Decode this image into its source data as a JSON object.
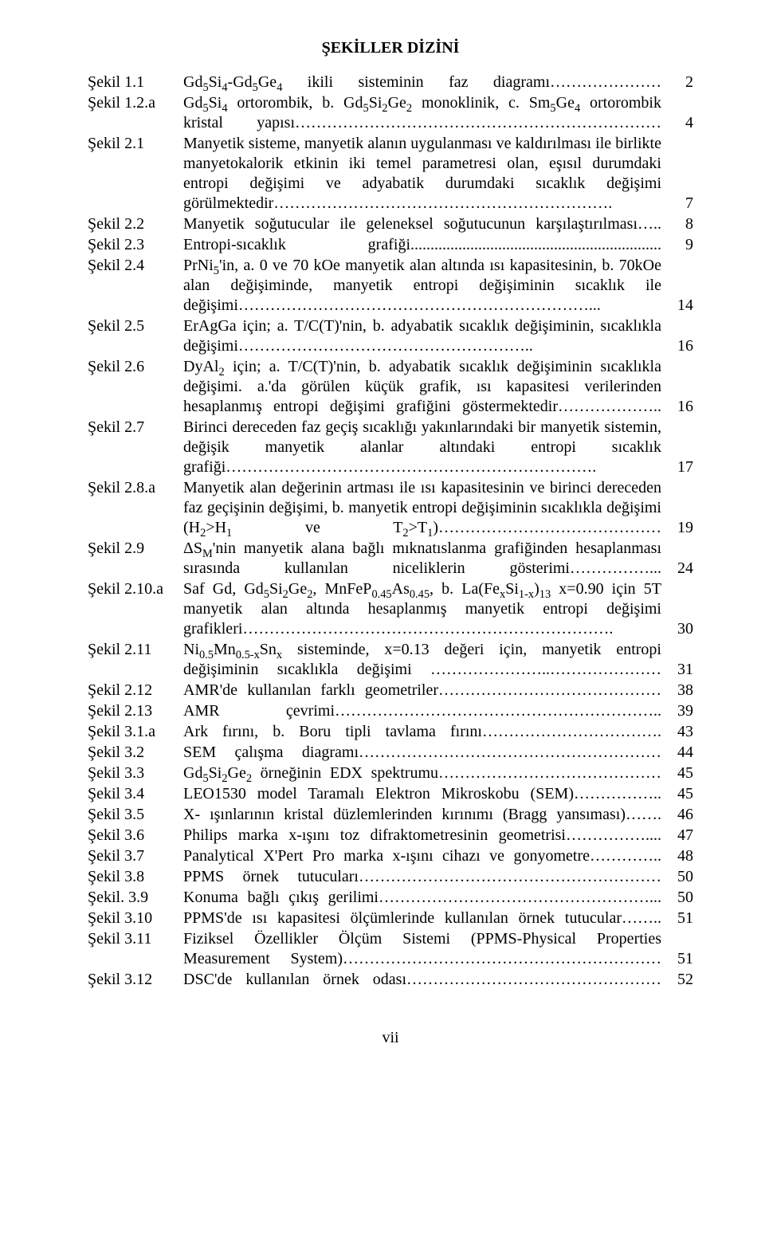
{
  "title": "ŞEKİLLER DİZİNİ",
  "footer": "vii",
  "entries": [
    {
      "label": "Şekil 1.1",
      "desc": "Gd<sub>5</sub>Si<sub>4</sub>-Gd<sub>5</sub>Ge<sub>4</sub> ikili sisteminin faz diagramı…………………",
      "page": "2"
    },
    {
      "label": "Şekil 1.2.a",
      "desc": "Gd<sub>5</sub>Si<sub>4</sub> ortorombik, b. Gd<sub>5</sub>Si<sub>2</sub>Ge<sub>2</sub> monoklinik, c. Sm<sub>5</sub>Ge<sub>4</sub> ortorombik kristal yapısı……………………………………………………………",
      "page": "4"
    },
    {
      "label": "Şekil 2.1",
      "desc": "Manyetik sisteme, manyetik alanın uygulanması ve kaldırılması ile birlikte manyetokalorik etkinin iki temel parametresi olan, eşısıl durumdaki entropi değişimi ve adyabatik durumdaki sıcaklık değişimi görülmektedir……………………………………………………….",
      "page": "7"
    },
    {
      "label": "Şekil 2.2",
      "desc": "Manyetik soğutucular ile geleneksel soğutucunun karşılaştırılması…..",
      "page": "8"
    },
    {
      "label": "Şekil 2.3",
      "desc": "Entropi-sıcaklık grafiği...............................................................",
      "page": "9"
    },
    {
      "label": "Şekil 2.4",
      "desc": "PrNi<sub>5</sub>'in, a. 0 ve 70 kOe manyetik alan altında ısı kapasitesinin, b. 70kOe alan değişiminde, manyetik entropi değişiminin sıcaklık ile değişimi…………………………………………………………...",
      "page": "14"
    },
    {
      "label": "Şekil 2.5",
      "desc": "ErAgGa için; a. T/C(T)'nin, b. adyabatik sıcaklık değişiminin, sıcaklıkla değişimi………………………………………………..",
      "page": "16"
    },
    {
      "label": "Şekil 2.6",
      "desc": "DyAl<sub>2</sub> için; a. T/C(T)'nin, b. adyabatik sıcaklık değişiminin sıcaklıkla değişimi. a.'da görülen küçük grafik, ısı kapasitesi verilerinden hesaplanmış entropi değişimi grafiğini göstermektedir………………..",
      "page": "16"
    },
    {
      "label": "Şekil 2.7",
      "desc": "Birinci dereceden faz geçiş sıcaklığı yakınlarındaki bir manyetik sistemin, değişik manyetik alanlar altındaki entropi sıcaklık grafiği…………………………………………………………….",
      "page": "17"
    },
    {
      "label": "Şekil 2.8.a",
      "desc": "Manyetik alan değerinin artması ile ısı kapasitesinin ve birinci dereceden faz geçişinin değişimi, b. manyetik entropi değişiminin sıcaklıkla değişimi (H<sub>2</sub>&gt;H<sub>1</sub> ve T<sub>2</sub>&gt;T<sub>1</sub>)……………………………………",
      "page": "19"
    },
    {
      "label": "Şekil 2.9",
      "desc": "ΔS<sub>M</sub>'nin manyetik alana bağlı mıknatıslanma grafiğinden hesaplanması sırasında kullanılan niceliklerin gösterimi……………...",
      "page": "24"
    },
    {
      "label": "Şekil 2.10.a",
      "desc": "Saf Gd, Gd<sub>5</sub>Si<sub>2</sub>Ge<sub>2</sub>, MnFeP<sub>0.45</sub>As<sub>0.45</sub>, b. La(Fe<sub>x</sub>Si<sub>1-x</sub>)<sub>13</sub> x=0.90 için 5T manyetik alan altında hesaplanmış manyetik entropi değişimi grafikleri…………………………………………………………….",
      "page": "30"
    },
    {
      "label": "Şekil 2.11",
      "desc": "Ni<sub>0.5</sub>Mn<sub>0.5-x</sub>Sn<sub>x</sub> sisteminde, x=0.13 değeri için, manyetik entropi değişiminin sıcaklıkla değişimi …………………..…………………",
      "page": "31"
    },
    {
      "label": "Şekil 2.12",
      "desc": "AMR'de kullanılan farklı geometriler……………………………………",
      "page": "38"
    },
    {
      "label": "Şekil 2.13",
      "desc": "AMR çevrimi……………………………………………………..",
      "page": "39"
    },
    {
      "label": "Şekil 3.1.a",
      "desc": "Ark fırını, b. Boru tipli tavlama fırını…………………………….",
      "page": "43"
    },
    {
      "label": "Şekil 3.2",
      "desc": "SEM çalışma diagramı…………………………………………………",
      "page": "44"
    },
    {
      "label": "Şekil 3.3",
      "desc": "Gd<sub>5</sub>Si<sub>2</sub>Ge<sub>2</sub> örneğinin EDX spektrumu……………………………………",
      "page": "45"
    },
    {
      "label": "Şekil 3.4",
      "desc": "LEO1530 model Taramalı Elektron Mikroskobu (SEM)……………..",
      "page": "45"
    },
    {
      "label": "Şekil 3.5",
      "desc": "X- ışınlarının kristal düzlemlerinden kırınımı (Bragg yansıması)…….",
      "page": "46"
    },
    {
      "label": "Şekil 3.6",
      "desc": "Philips marka x-ışını toz difraktometresinin geometrisi……………....",
      "page": "47"
    },
    {
      "label": "Şekil 3.7",
      "desc": "Panalytical X'Pert Pro marka x-ışını cihazı ve gonyometre…………..",
      "page": "48"
    },
    {
      "label": "Şekil 3.8",
      "desc": "PPMS örnek tutucuları…………………………………………………",
      "page": "50"
    },
    {
      "label": "Şekil. 3.9",
      "desc": "Konuma bağlı çıkış gerilimi……………………………………………...",
      "page": "50"
    },
    {
      "label": "Şekil 3.10",
      "desc": "PPMS'de ısı kapasitesi ölçümlerinde kullanılan örnek tutucular……..",
      "page": "51"
    },
    {
      "label": "Şekil 3.11",
      "desc": "Fiziksel Özellikler Ölçüm Sistemi (PPMS-Physical Properties Measurement System)……………………………………………………",
      "page": "51"
    },
    {
      "label": "Şekil 3.12",
      "desc": "DSC'de kullanılan örnek odası…………………………………………",
      "page": "52"
    }
  ]
}
